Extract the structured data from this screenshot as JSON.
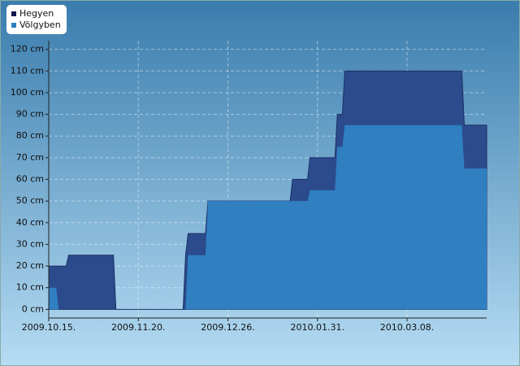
{
  "chart_data": {
    "type": "area",
    "x": [
      "2009-10-15",
      "2009-10-18",
      "2009-10-19",
      "2009-10-22",
      "2009-10-23",
      "2009-11-10",
      "2009-11-11",
      "2009-12-08",
      "2009-12-09",
      "2009-12-10",
      "2009-12-17",
      "2009-12-18",
      "2010-01-20",
      "2010-01-21",
      "2010-01-27",
      "2010-01-28",
      "2010-02-07",
      "2010-02-08",
      "2010-02-10",
      "2010-02-11",
      "2010-03-30",
      "2010-03-31",
      "2010-04-09"
    ],
    "series": [
      {
        "name": "Hegyen",
        "color": "#2b4b8c",
        "values": [
          20,
          20,
          20,
          20,
          25,
          25,
          0,
          0,
          25,
          35,
          35,
          50,
          50,
          60,
          60,
          70,
          70,
          90,
          90,
          110,
          110,
          85,
          85
        ]
      },
      {
        "name": "Völgyben",
        "color": "#2f7fc1",
        "values": [
          10,
          10,
          0,
          0,
          0,
          0,
          0,
          0,
          0,
          25,
          25,
          50,
          50,
          50,
          50,
          55,
          55,
          75,
          75,
          85,
          85,
          65,
          65
        ]
      }
    ],
    "xlim": [
      "2009-10-15",
      "2010-04-09"
    ],
    "xticks": [
      {
        "value": "2009-10-15",
        "label": "2009.10.15."
      },
      {
        "value": "2009-11-20",
        "label": "2009.11.20."
      },
      {
        "value": "2009-12-26",
        "label": "2009.12.26."
      },
      {
        "value": "2010-01-31",
        "label": "2010.01.31."
      },
      {
        "value": "2010-03-08",
        "label": "2010.03.08."
      }
    ],
    "ylim": [
      -4,
      124
    ],
    "yticks": [
      {
        "value": 0,
        "label": "0 cm"
      },
      {
        "value": 10,
        "label": "10 cm"
      },
      {
        "value": 20,
        "label": "20 cm"
      },
      {
        "value": 30,
        "label": "30 cm"
      },
      {
        "value": 40,
        "label": "40 cm"
      },
      {
        "value": 50,
        "label": "50 cm"
      },
      {
        "value": 60,
        "label": "60 cm"
      },
      {
        "value": 70,
        "label": "70 cm"
      },
      {
        "value": 80,
        "label": "80 cm"
      },
      {
        "value": 90,
        "label": "90 cm"
      },
      {
        "value": 100,
        "label": "100 cm"
      },
      {
        "value": 110,
        "label": "110 cm"
      },
      {
        "value": 120,
        "label": "120 cm"
      }
    ],
    "grid": true,
    "legend": "top-left"
  }
}
